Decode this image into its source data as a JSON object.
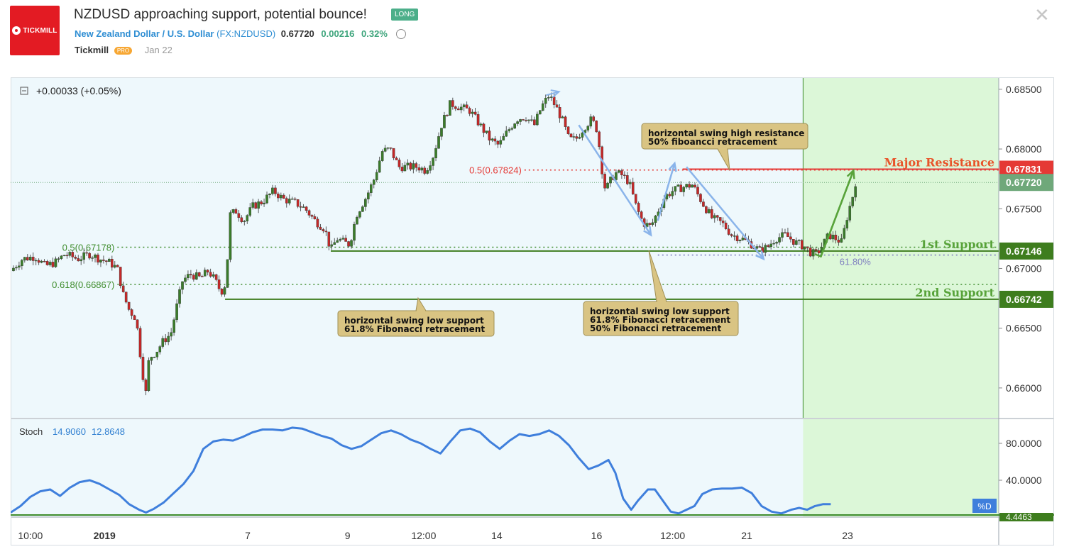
{
  "header": {
    "logo_text": "TICKMILL",
    "title": "NZDUSD approaching support, potential bounce!",
    "badge": "LONG",
    "pair_name": "New Zealand Dollar / U.S. Dollar",
    "ticker": "(FX:NZDUSD)",
    "price": "0.67720",
    "change": "0.00216",
    "change_pct": "0.32%",
    "author": "Tickmill",
    "author_badge": "PRO",
    "date": "Jan 22",
    "close_icon": "close-icon",
    "alarm_icon": "alarm-clock-icon"
  },
  "chart_data": {
    "type": "candlestick",
    "symbol": "FX:NZDUSD",
    "header_change": "+0.00033 (+0.05%)",
    "ylim": [
      0.6575,
      0.686
    ],
    "price_ticks": [
      "0.68500",
      "0.68000",
      "0.67500",
      "0.67000",
      "0.66500",
      "0.66000"
    ],
    "price_tick_values": [
      0.685,
      0.68,
      0.675,
      0.67,
      0.665,
      0.66
    ],
    "time_ticks": [
      {
        "label": "10:00",
        "t": 0.02
      },
      {
        "label": "2019",
        "t": 0.095,
        "bold": true
      },
      {
        "label": "7",
        "t": 0.24
      },
      {
        "label": "9",
        "t": 0.341
      },
      {
        "label": "12:00",
        "t": 0.418
      },
      {
        "label": "14",
        "t": 0.492
      },
      {
        "label": "16",
        "t": 0.593
      },
      {
        "label": "12:00",
        "t": 0.67
      },
      {
        "label": "21",
        "t": 0.745
      },
      {
        "label": "23",
        "t": 0.847
      }
    ],
    "close_path": [
      [
        0.0,
        0.6698
      ],
      [
        0.012,
        0.6708
      ],
      [
        0.025,
        0.671
      ],
      [
        0.035,
        0.6702
      ],
      [
        0.045,
        0.6705
      ],
      [
        0.055,
        0.6712
      ],
      [
        0.068,
        0.6708
      ],
      [
        0.08,
        0.6712
      ],
      [
        0.09,
        0.6708
      ],
      [
        0.1,
        0.6705
      ],
      [
        0.108,
        0.67
      ],
      [
        0.114,
        0.6678
      ],
      [
        0.12,
        0.6665
      ],
      [
        0.127,
        0.6658
      ],
      [
        0.133,
        0.6615
      ],
      [
        0.137,
        0.6595
      ],
      [
        0.14,
        0.6625
      ],
      [
        0.147,
        0.663
      ],
      [
        0.155,
        0.664
      ],
      [
        0.162,
        0.6645
      ],
      [
        0.168,
        0.6668
      ],
      [
        0.174,
        0.669
      ],
      [
        0.182,
        0.6695
      ],
      [
        0.192,
        0.6692
      ],
      [
        0.2,
        0.6698
      ],
      [
        0.207,
        0.669
      ],
      [
        0.213,
        0.668
      ],
      [
        0.218,
        0.6688
      ],
      [
        0.222,
        0.6745
      ],
      [
        0.228,
        0.6748
      ],
      [
        0.236,
        0.674
      ],
      [
        0.245,
        0.6752
      ],
      [
        0.255,
        0.6756
      ],
      [
        0.266,
        0.6765
      ],
      [
        0.276,
        0.6758
      ],
      [
        0.288,
        0.6755
      ],
      [
        0.298,
        0.675
      ],
      [
        0.308,
        0.674
      ],
      [
        0.318,
        0.6733
      ],
      [
        0.324,
        0.6715
      ],
      [
        0.33,
        0.6725
      ],
      [
        0.337,
        0.6722
      ],
      [
        0.343,
        0.672
      ],
      [
        0.35,
        0.6745
      ],
      [
        0.36,
        0.676
      ],
      [
        0.368,
        0.6775
      ],
      [
        0.376,
        0.6798
      ],
      [
        0.384,
        0.68
      ],
      [
        0.393,
        0.6785
      ],
      [
        0.403,
        0.6785
      ],
      [
        0.412,
        0.6785
      ],
      [
        0.42,
        0.6782
      ],
      [
        0.428,
        0.6795
      ],
      [
        0.436,
        0.682
      ],
      [
        0.445,
        0.6838
      ],
      [
        0.455,
        0.6835
      ],
      [
        0.465,
        0.6832
      ],
      [
        0.475,
        0.682
      ],
      [
        0.485,
        0.6808
      ],
      [
        0.494,
        0.6803
      ],
      [
        0.503,
        0.6815
      ],
      [
        0.512,
        0.6825
      ],
      [
        0.521,
        0.6827
      ],
      [
        0.53,
        0.682
      ],
      [
        0.537,
        0.6835
      ],
      [
        0.545,
        0.6845
      ],
      [
        0.552,
        0.6835
      ],
      [
        0.558,
        0.6825
      ],
      [
        0.565,
        0.6808
      ],
      [
        0.572,
        0.6808
      ],
      [
        0.58,
        0.6818
      ],
      [
        0.588,
        0.6825
      ],
      [
        0.594,
        0.6815
      ],
      [
        0.598,
        0.6785
      ],
      [
        0.602,
        0.6765
      ],
      [
        0.606,
        0.6772
      ],
      [
        0.612,
        0.678
      ],
      [
        0.619,
        0.6778
      ],
      [
        0.626,
        0.6772
      ],
      [
        0.633,
        0.6752
      ],
      [
        0.64,
        0.6738
      ],
      [
        0.648,
        0.6735
      ],
      [
        0.655,
        0.6748
      ],
      [
        0.662,
        0.676
      ],
      [
        0.67,
        0.6765
      ],
      [
        0.68,
        0.6768
      ],
      [
        0.69,
        0.677
      ],
      [
        0.7,
        0.6755
      ],
      [
        0.71,
        0.6742
      ],
      [
        0.72,
        0.6738
      ],
      [
        0.73,
        0.6728
      ],
      [
        0.74,
        0.6725
      ],
      [
        0.75,
        0.672
      ],
      [
        0.758,
        0.6715
      ],
      [
        0.766,
        0.6718
      ],
      [
        0.774,
        0.6725
      ],
      [
        0.784,
        0.6728
      ],
      [
        0.794,
        0.6722
      ],
      [
        0.804,
        0.6718
      ],
      [
        0.81,
        0.6713
      ],
      [
        0.816,
        0.6712
      ],
      [
        0.822,
        0.672
      ],
      [
        0.828,
        0.6728
      ],
      [
        0.835,
        0.6725
      ],
      [
        0.841,
        0.6722
      ],
      [
        0.847,
        0.6745
      ],
      [
        0.852,
        0.676
      ],
      [
        0.855,
        0.6772
      ]
    ],
    "levels": [
      {
        "name": "Major Resistance",
        "price": 0.67831,
        "label": "0.67831",
        "color": "#e53935",
        "style": "solid",
        "x_start": 0.68
      },
      {
        "name": "1st Support",
        "price": 0.67146,
        "label": "0.67146",
        "color": "#3e7d1e",
        "style": "solid",
        "x_start": 0.324
      },
      {
        "name": "2nd Support",
        "price": 0.66742,
        "label": "0.66742",
        "color": "#3e7d1e",
        "style": "solid",
        "x_start": 0.217
      },
      {
        "name": "current",
        "price": 0.6772,
        "label": "0.67720",
        "color": "#6fa87a",
        "style": "dotted",
        "x_start": 0.0
      }
    ],
    "level_labels": [
      "Major Resistance",
      "1st Support",
      "2nd Support"
    ],
    "fib_levels": [
      {
        "label": "0.5(0.67824)",
        "price": 0.67824,
        "color": "#e53935",
        "x_start": 0.52,
        "x_end": 1.0
      },
      {
        "label": "0.5(0.67178)",
        "price": 0.67178,
        "color": "#3e8c2c",
        "x_start": 0.108,
        "x_end": 1.0
      },
      {
        "label": "0.618(0.66867)",
        "price": 0.66867,
        "color": "#3e8c2c",
        "x_start": 0.108,
        "x_end": 1.0
      },
      {
        "label": "61.80%",
        "price": 0.67112,
        "color": "#8080c0",
        "x_start": 0.655,
        "x_end": 1.0
      }
    ],
    "annotations": [
      {
        "lines": [
          "horizontal swing high resistance",
          "50% fiboancci retracement"
        ]
      },
      {
        "lines": [
          "horizontal swing low support",
          "61.8% Fibonacci retracement"
        ]
      },
      {
        "lines": [
          "horizontal swing low support",
          "61.8% Fibonacci retracement",
          "50% Fibonacci retracement"
        ]
      }
    ],
    "forecast_zone_start": 0.802,
    "stochastic": {
      "name": "Stoch",
      "k": "14.9060",
      "d": "12.8648",
      "ticks": [
        "80.0000",
        "40.0000"
      ],
      "tick_values": [
        80,
        40
      ],
      "last_label": "4.4463",
      "tag": "%D",
      "ylim": [
        0,
        100
      ],
      "values": [
        [
          0.0,
          5
        ],
        [
          0.01,
          12
        ],
        [
          0.02,
          22
        ],
        [
          0.03,
          28
        ],
        [
          0.04,
          30
        ],
        [
          0.05,
          23
        ],
        [
          0.06,
          32
        ],
        [
          0.07,
          38
        ],
        [
          0.08,
          40
        ],
        [
          0.09,
          36
        ],
        [
          0.1,
          30
        ],
        [
          0.11,
          24
        ],
        [
          0.12,
          14
        ],
        [
          0.13,
          8
        ],
        [
          0.137,
          5
        ],
        [
          0.145,
          9
        ],
        [
          0.155,
          16
        ],
        [
          0.165,
          26
        ],
        [
          0.175,
          36
        ],
        [
          0.185,
          50
        ],
        [
          0.195,
          74
        ],
        [
          0.205,
          82
        ],
        [
          0.215,
          84
        ],
        [
          0.225,
          83
        ],
        [
          0.235,
          87
        ],
        [
          0.245,
          92
        ],
        [
          0.255,
          95
        ],
        [
          0.265,
          95
        ],
        [
          0.275,
          94
        ],
        [
          0.285,
          97
        ],
        [
          0.295,
          96
        ],
        [
          0.305,
          92
        ],
        [
          0.315,
          88
        ],
        [
          0.325,
          85
        ],
        [
          0.335,
          78
        ],
        [
          0.345,
          74
        ],
        [
          0.355,
          77
        ],
        [
          0.365,
          84
        ],
        [
          0.375,
          91
        ],
        [
          0.385,
          94
        ],
        [
          0.395,
          90
        ],
        [
          0.405,
          84
        ],
        [
          0.415,
          80
        ],
        [
          0.425,
          74
        ],
        [
          0.435,
          69
        ],
        [
          0.445,
          82
        ],
        [
          0.455,
          94
        ],
        [
          0.465,
          96
        ],
        [
          0.475,
          92
        ],
        [
          0.485,
          82
        ],
        [
          0.495,
          74
        ],
        [
          0.505,
          83
        ],
        [
          0.515,
          90
        ],
        [
          0.525,
          88
        ],
        [
          0.535,
          90
        ],
        [
          0.545,
          94
        ],
        [
          0.555,
          88
        ],
        [
          0.565,
          78
        ],
        [
          0.575,
          64
        ],
        [
          0.585,
          52
        ],
        [
          0.595,
          56
        ],
        [
          0.605,
          62
        ],
        [
          0.612,
          48
        ],
        [
          0.62,
          20
        ],
        [
          0.628,
          8
        ],
        [
          0.635,
          18
        ],
        [
          0.645,
          30
        ],
        [
          0.652,
          30
        ],
        [
          0.66,
          18
        ],
        [
          0.668,
          6
        ],
        [
          0.676,
          4
        ],
        [
          0.684,
          8
        ],
        [
          0.692,
          12
        ],
        [
          0.7,
          25
        ],
        [
          0.71,
          30
        ],
        [
          0.72,
          31
        ],
        [
          0.73,
          31
        ],
        [
          0.74,
          32
        ],
        [
          0.75,
          26
        ],
        [
          0.76,
          12
        ],
        [
          0.77,
          6
        ],
        [
          0.78,
          4
        ],
        [
          0.79,
          8
        ],
        [
          0.798,
          10
        ],
        [
          0.806,
          8
        ],
        [
          0.814,
          12
        ],
        [
          0.822,
          14
        ],
        [
          0.83,
          14
        ]
      ]
    }
  }
}
